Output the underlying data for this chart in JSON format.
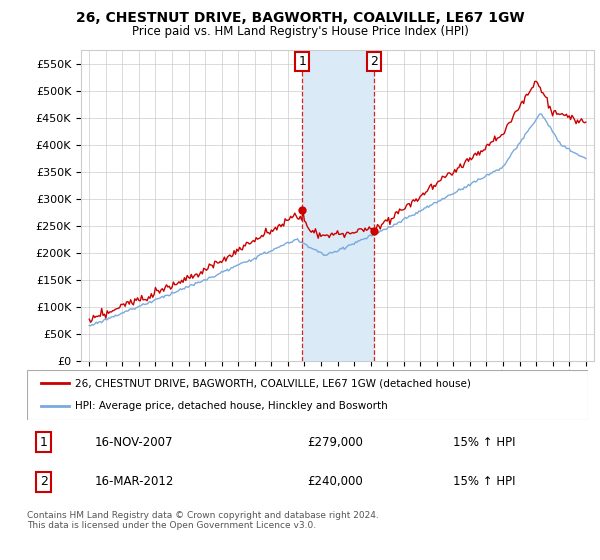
{
  "title": "26, CHESTNUT DRIVE, BAGWORTH, COALVILLE, LE67 1GW",
  "subtitle": "Price paid vs. HM Land Registry's House Price Index (HPI)",
  "legend_line1": "26, CHESTNUT DRIVE, BAGWORTH, COALVILLE, LE67 1GW (detached house)",
  "legend_line2": "HPI: Average price, detached house, Hinckley and Bosworth",
  "footer": "Contains HM Land Registry data © Crown copyright and database right 2024.\nThis data is licensed under the Open Government Licence v3.0.",
  "transaction1": {
    "num": "1",
    "date": "16-NOV-2007",
    "price": "£279,000",
    "hpi": "15% ↑ HPI"
  },
  "transaction2": {
    "num": "2",
    "date": "16-MAR-2012",
    "price": "£240,000",
    "hpi": "15% ↑ HPI"
  },
  "ylim": [
    0,
    575000
  ],
  "yticks": [
    0,
    50000,
    100000,
    150000,
    200000,
    250000,
    300000,
    350000,
    400000,
    450000,
    500000,
    550000
  ],
  "line_color_red": "#cc0000",
  "line_color_blue": "#7aaadd",
  "shaded_color": "#daeaf7",
  "vline_color": "#cc0000",
  "background_color": "#ffffff",
  "grid_color": "#cccccc",
  "marker1_x": 2007.88,
  "marker1_y": 279000,
  "marker2_x": 2012.21,
  "marker2_y": 240000,
  "shade_x1": 2007.88,
  "shade_x2": 2012.21,
  "xlim_left": 1994.5,
  "xlim_right": 2025.5
}
